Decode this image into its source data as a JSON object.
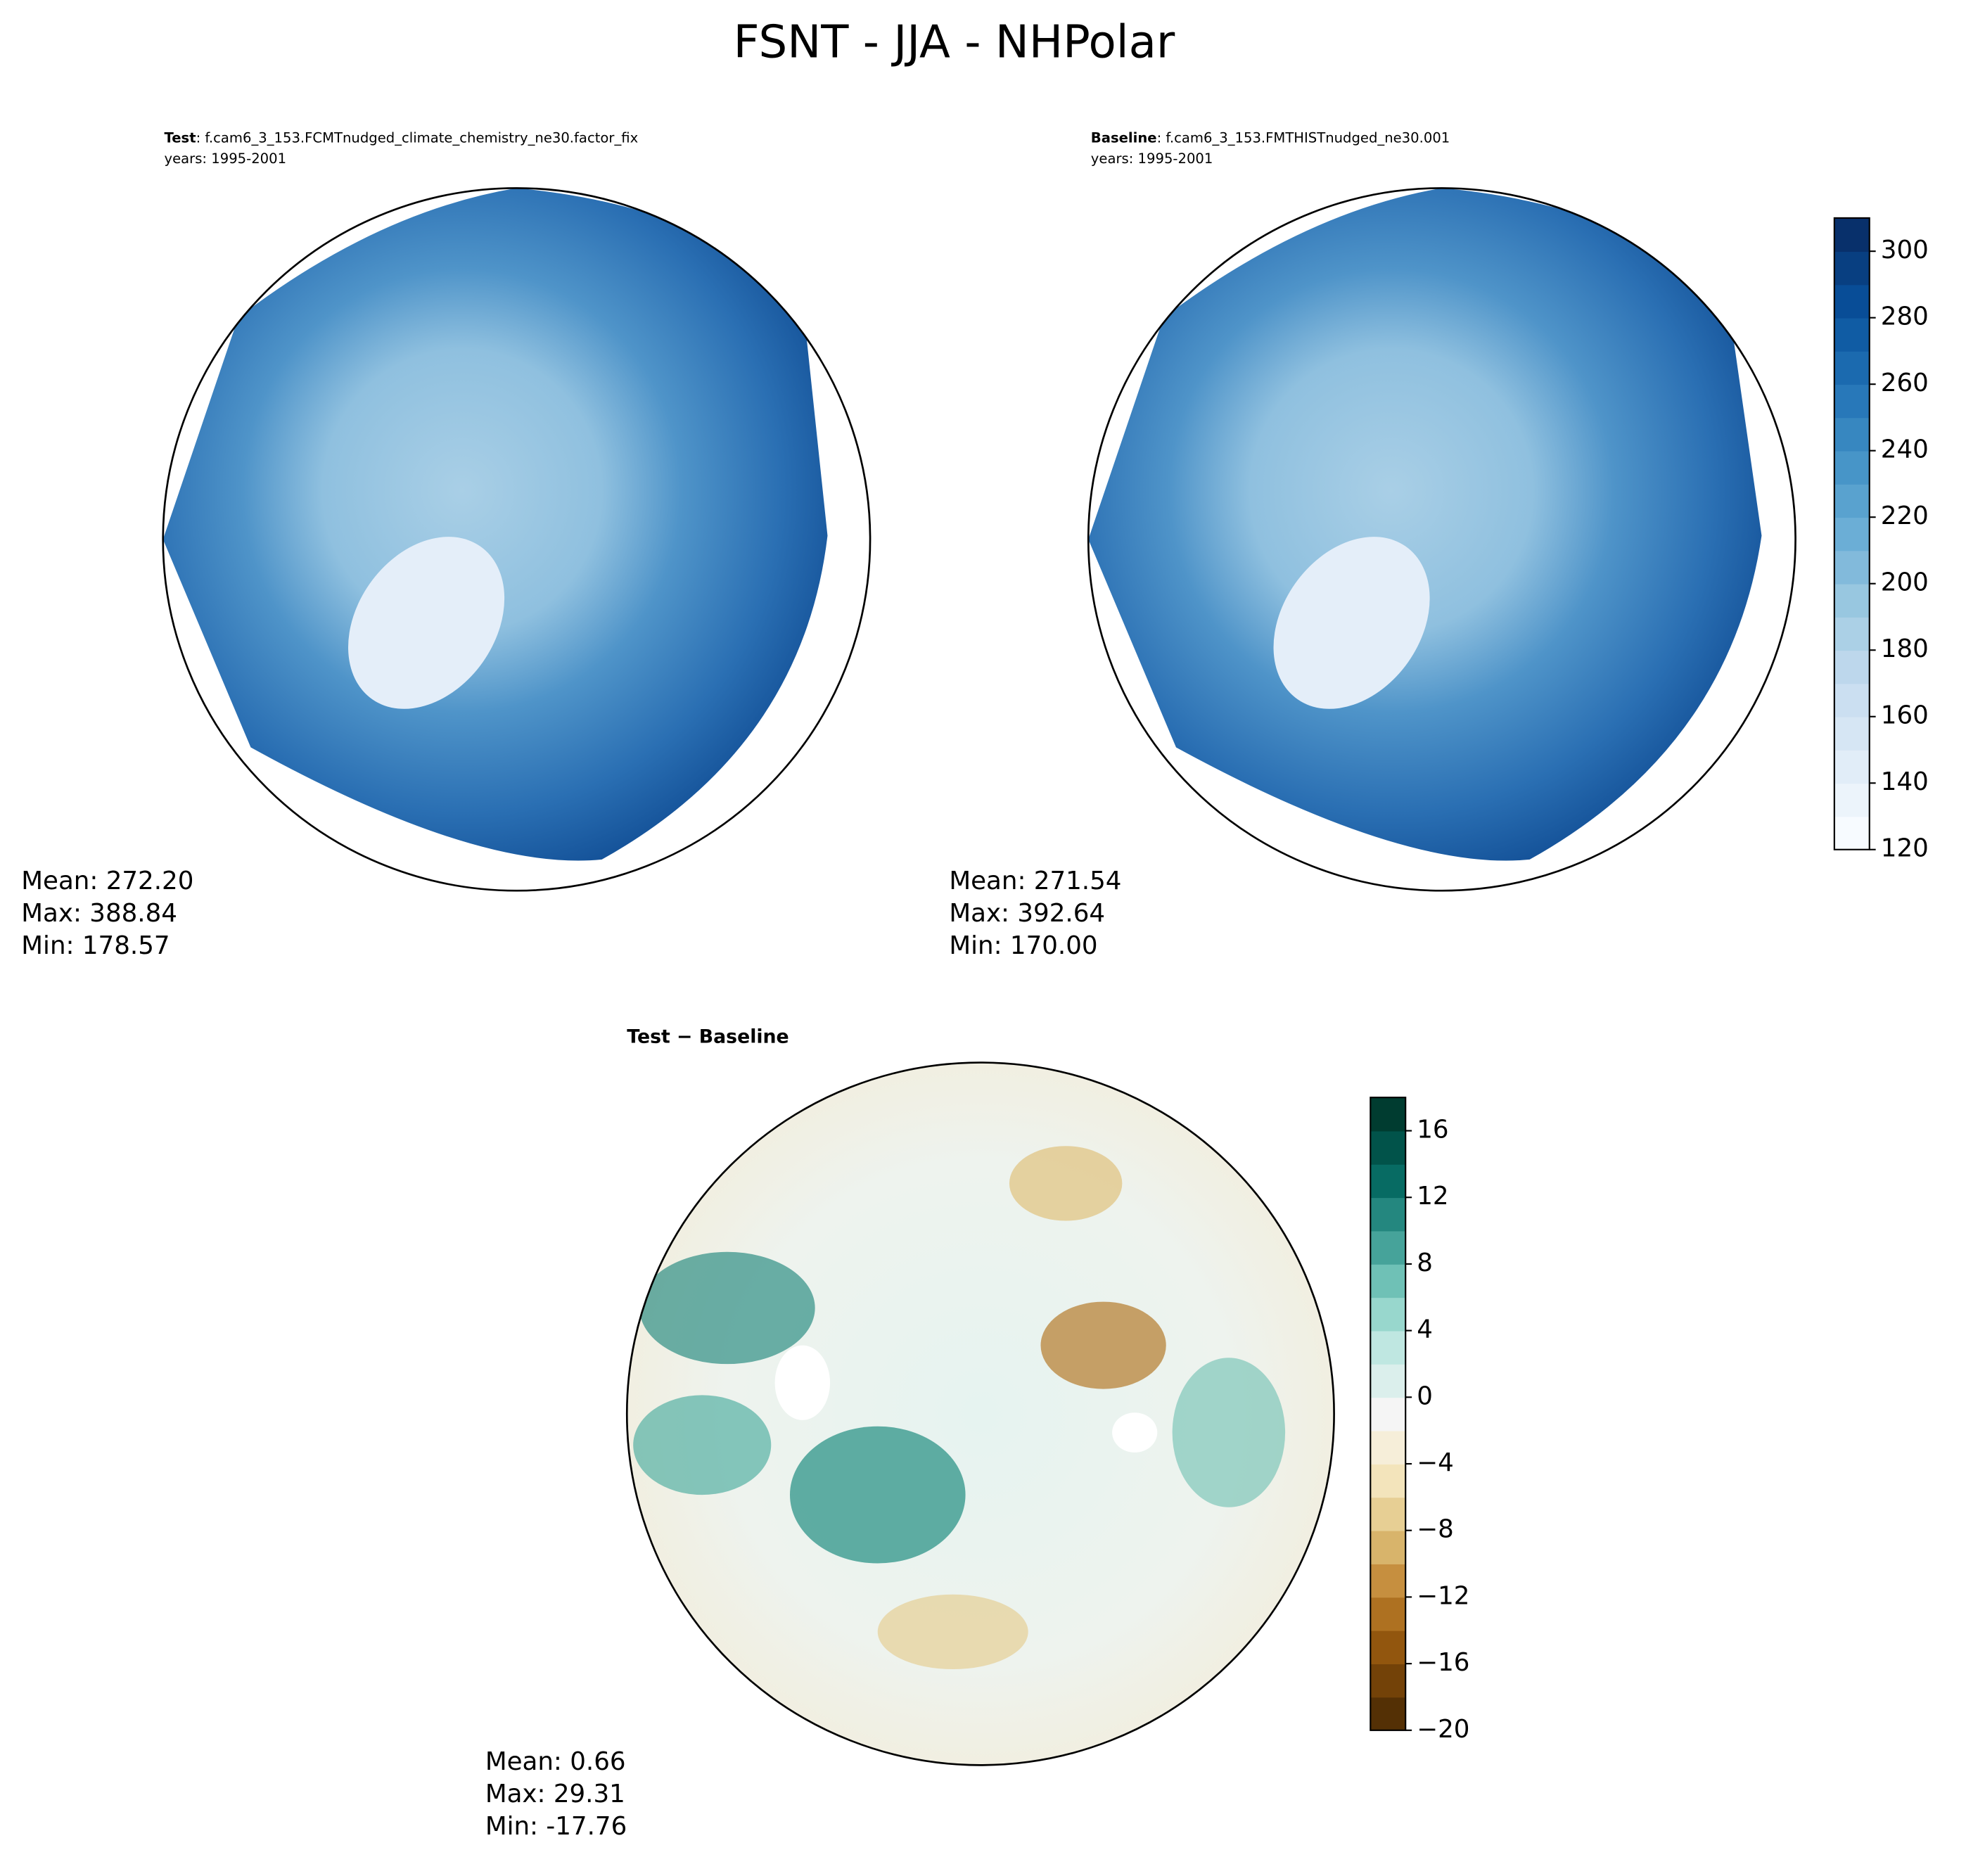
{
  "title": "FSNT - JJA - NHPolar",
  "chart_data": [
    {
      "type": "map",
      "label": "Test",
      "case": ": f.cam6_3_153.FCMTnudged_climate_chemistry_ne30.factor_fix",
      "years": "years: 1995-2001",
      "stats": [
        "Mean: 272.20",
        "Max: 388.84",
        "Min: 178.57"
      ]
    },
    {
      "type": "map",
      "label": "Baseline",
      "case": ": f.cam6_3_153.FMTHISTnudged_ne30.001",
      "years": "years: 1995-2001",
      "stats": [
        "Mean: 271.54",
        "Max: 392.64",
        "Min: 170.00"
      ],
      "colorbar": {
        "lim": [
          120,
          310
        ],
        "ticks": [
          120,
          140,
          160,
          180,
          200,
          220,
          240,
          260,
          280,
          300
        ],
        "colors": [
          "#f7fbff",
          "#deebf7",
          "#c6dbef",
          "#9ecae1",
          "#6baed6",
          "#4292c6",
          "#2171b5",
          "#08519c",
          "#08306b"
        ],
        "bands": 19
      }
    },
    {
      "type": "map",
      "label": "Test − Baseline",
      "stats": [
        "Mean:  0.66",
        "Max: 29.31",
        "Min: -17.76"
      ],
      "colorbar": {
        "lim": [
          -20,
          18
        ],
        "ticks": [
          {
            "value": -20,
            "label": "−20"
          },
          {
            "value": -16,
            "label": "−16"
          },
          {
            "value": -12,
            "label": "−12"
          },
          {
            "value": -8,
            "label": "−8"
          },
          {
            "value": -4,
            "label": "−4"
          },
          0,
          4,
          8,
          12,
          16
        ],
        "colors": [
          "#543005",
          "#8c510a",
          "#bf812d",
          "#dfc27d",
          "#f6e8c3",
          "#f5f5f5",
          "#c7eae5",
          "#80cdc1",
          "#35978f",
          "#01665e",
          "#003c30"
        ],
        "bands": 19
      }
    }
  ]
}
